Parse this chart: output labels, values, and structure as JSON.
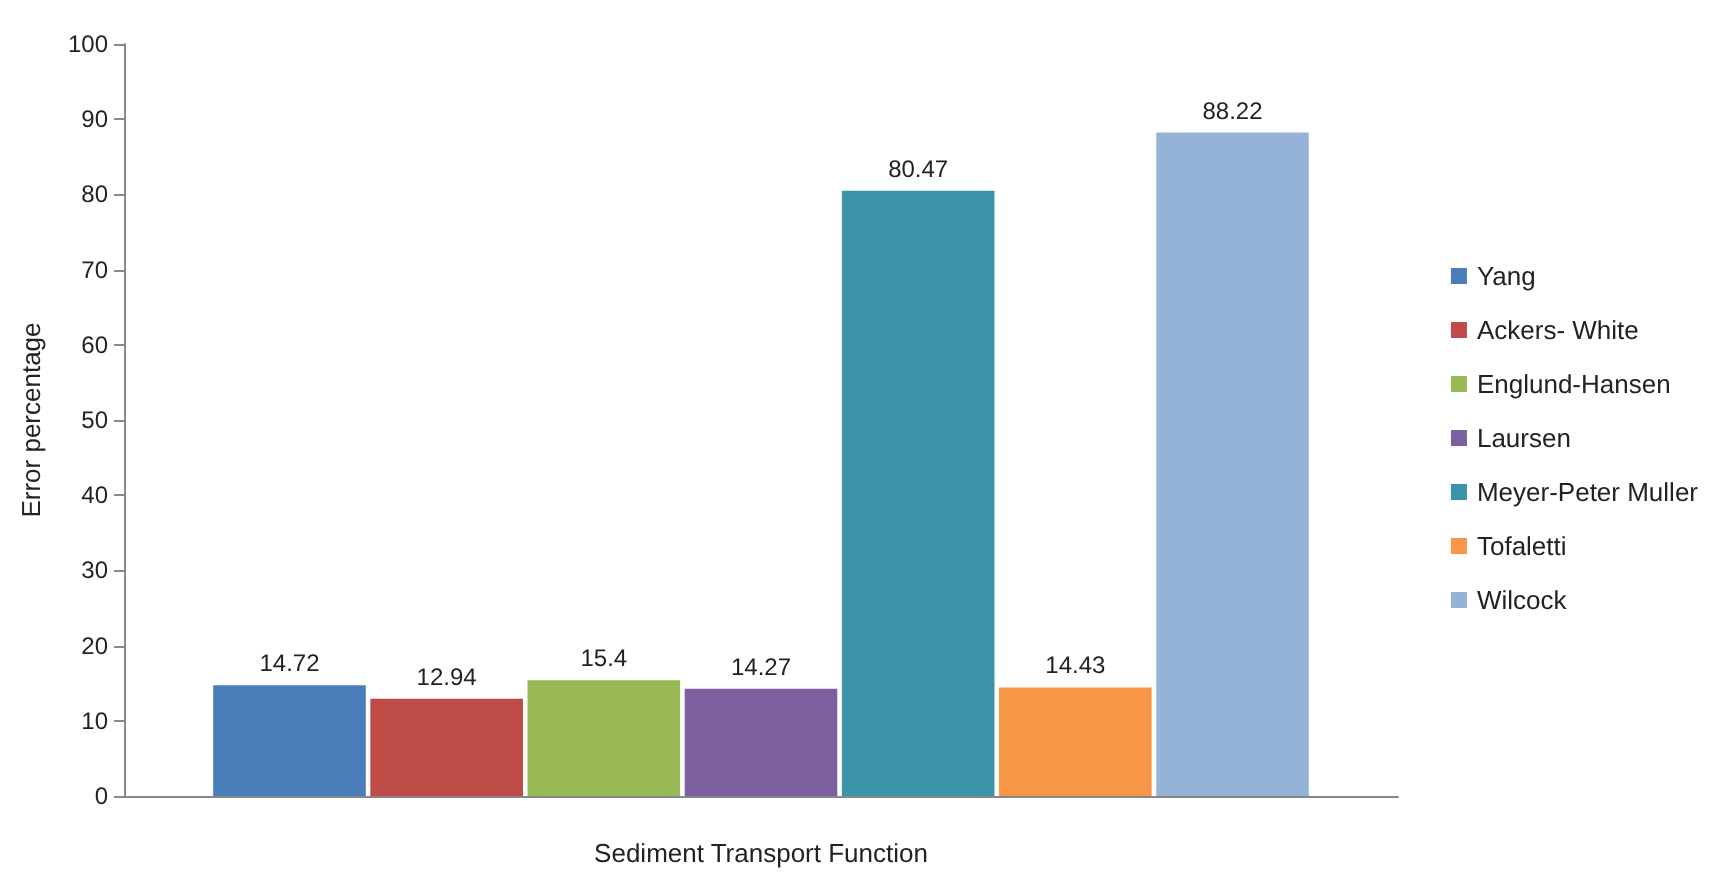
{
  "chart_data": {
    "type": "bar",
    "xlabel": "Sediment Transport Function",
    "ylabel": "Error percentage",
    "categories": [
      null
    ],
    "series": [
      {
        "name": "Yang",
        "color": "#4a7ebb",
        "values": [
          14.72
        ]
      },
      {
        "name": "Ackers- White",
        "color": "#be4b48",
        "values": [
          12.94
        ]
      },
      {
        "name": "Englund-Hansen",
        "color": "#98b954",
        "values": [
          15.4
        ]
      },
      {
        "name": "Laursen",
        "color": "#7d60a0",
        "values": [
          14.27
        ]
      },
      {
        "name": "Meyer-Peter Muller",
        "color": "#3a93a8",
        "values": [
          80.47
        ]
      },
      {
        "name": "Tofaletti",
        "color": "#f79646",
        "values": [
          14.43
        ]
      },
      {
        "name": "Wilcock",
        "color": "#95b3d7",
        "values": [
          88.22
        ]
      }
    ],
    "ylim": [
      0,
      100
    ],
    "yticks": [
      0,
      10,
      20,
      30,
      40,
      50,
      60,
      70,
      80,
      90,
      100
    ],
    "grid": false,
    "legend": "right",
    "data_labels": true
  }
}
